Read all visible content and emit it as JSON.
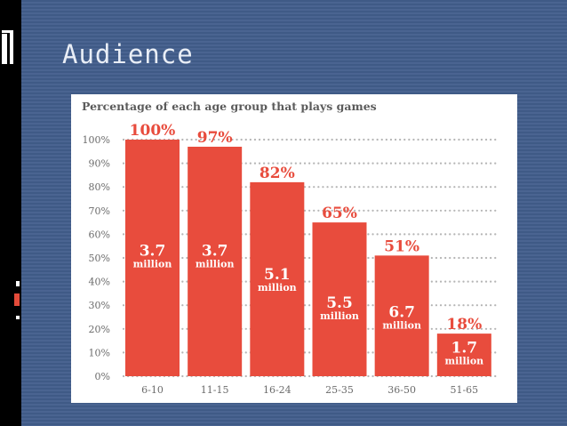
{
  "slide": {
    "title": "Audience"
  },
  "chart_data": {
    "type": "bar",
    "title": "Percentage of each age group that plays games",
    "categories": [
      "6-10",
      "11-15",
      "16-24",
      "25-35",
      "36-50",
      "51-65"
    ],
    "values": [
      100,
      97,
      82,
      65,
      51,
      18
    ],
    "value_labels": [
      "100%",
      "97%",
      "82%",
      "65%",
      "51%",
      "18%"
    ],
    "bar_annotations": [
      {
        "number": "3.7",
        "unit": "million"
      },
      {
        "number": "3.7",
        "unit": "million"
      },
      {
        "number": "5.1",
        "unit": "million"
      },
      {
        "number": "5.5",
        "unit": "million"
      },
      {
        "number": "6.7",
        "unit": "million"
      },
      {
        "number": "1.7",
        "unit": "million"
      }
    ],
    "y_ticks": [
      "0%",
      "10%",
      "20%",
      "30%",
      "40%",
      "50%",
      "60%",
      "70%",
      "80%",
      "90%",
      "100%"
    ],
    "ylim": [
      0,
      100
    ],
    "bar_color": "#e84c3d",
    "label_color": "#e84c3d",
    "gridlines": "dotted"
  }
}
